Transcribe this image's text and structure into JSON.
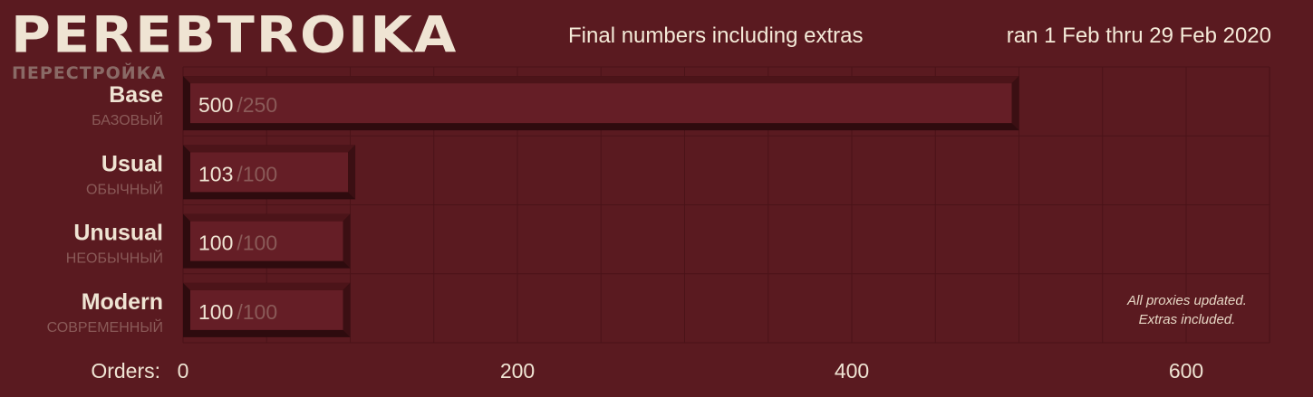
{
  "header": {
    "logo": "PEREBTROIKA",
    "logo_subtitle": "ПЕРЕСТРОЙКА",
    "subtitle": "Final numbers including extras",
    "date_range": "ran 1 Feb thru 29 Feb 2020"
  },
  "chart_data": {
    "type": "bar",
    "orientation": "horizontal",
    "categories": [
      "Base",
      "Usual",
      "Unusual",
      "Modern"
    ],
    "categories_ru": [
      "БАЗОВЫЙ",
      "ОБЫЧНЫЙ",
      "НЕОБЫЧНЫЙ",
      "СОВРЕМЕННЫЙ"
    ],
    "values": [
      500,
      103,
      100,
      100
    ],
    "targets": [
      250,
      100,
      100,
      100
    ],
    "target_labels": [
      "/250",
      "/100",
      "/100",
      "/100"
    ],
    "xlabel": "Orders:",
    "xticks": [
      0,
      200,
      400,
      600
    ],
    "xlim": [
      0,
      650
    ],
    "grid": true
  },
  "notes": {
    "line1": "All proxies updated.",
    "line2": "Extras included."
  },
  "colors": {
    "background": "#5a1a20",
    "bar_face": "#651e26",
    "bar_top": "#4c1419",
    "bar_shadow": "#2e0b0e",
    "grid": "#4a1318",
    "text": "#efe4d3",
    "muted": "#8a5a58"
  }
}
